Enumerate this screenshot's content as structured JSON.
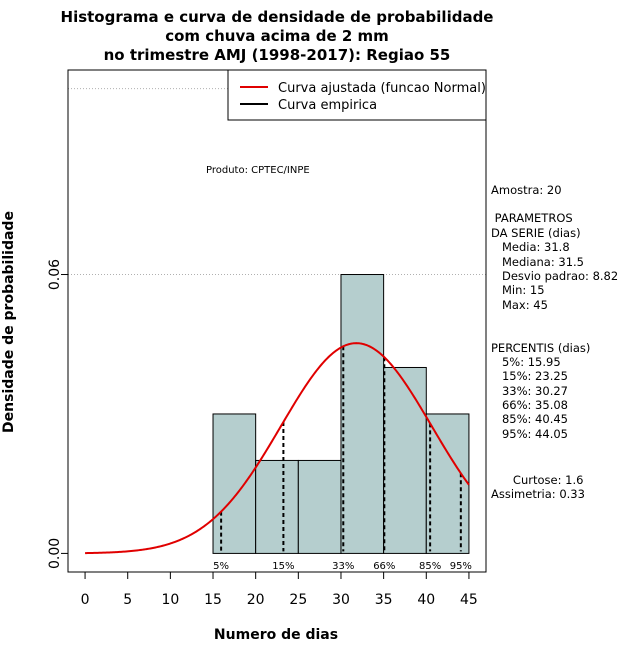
{
  "chart_data": {
    "type": "bar",
    "title_lines": [
      "Histograma e curva de densidade de probabilidade",
      "com chuva acima de 2 mm",
      "no trimestre AMJ (1998-2017): Regiao 55"
    ],
    "xlabel": "Numero de dias",
    "ylabel": "Densidade de probabilidade",
    "xlim": [
      -2,
      47
    ],
    "ylim": [
      -0.004,
      0.104
    ],
    "x_ticks": [
      0,
      5,
      10,
      15,
      20,
      25,
      30,
      35,
      40,
      45
    ],
    "x_tick_labels": [
      "0",
      "5",
      "10",
      "15",
      "20",
      "25",
      "30",
      "35",
      "40",
      "45"
    ],
    "y_ticks": [
      0,
      0.06
    ],
    "y_tick_labels": [
      "0.00",
      "0.06"
    ],
    "gridlines_y": [
      0.06,
      0.1
    ],
    "bins": [
      {
        "from": 15,
        "to": 20,
        "density": 0.03
      },
      {
        "from": 20,
        "to": 25,
        "density": 0.02
      },
      {
        "from": 25,
        "to": 30,
        "density": 0.02
      },
      {
        "from": 30,
        "to": 35,
        "density": 0.06
      },
      {
        "from": 35,
        "to": 40,
        "density": 0.04
      },
      {
        "from": 40,
        "to": 45,
        "density": 0.03
      }
    ],
    "normal_fit": {
      "mean": 31.8,
      "sd": 8.82,
      "x_from": 0,
      "x_to": 45
    },
    "percentile_markers": [
      {
        "label": "5%",
        "x": 15.95
      },
      {
        "label": "15%",
        "x": 23.25
      },
      {
        "label": "33%",
        "x": 30.27
      },
      {
        "label": "66%",
        "x": 35.08
      },
      {
        "label": "85%",
        "x": 40.45
      },
      {
        "label": "95%",
        "x": 44.05
      }
    ],
    "legend": {
      "position": "top-right",
      "entries": [
        {
          "label": "Curva ajustada (funcao Normal)",
          "color": "#e00000"
        },
        {
          "label": "Curva empirica",
          "color": "#000000"
        }
      ]
    },
    "annotation": "Produto: CPTEC/INPE",
    "side_panel": [
      "Amostra: 20",
      " PARAMETROS",
      "DA SERIE (dias)",
      "   Media: 31.8",
      "   Mediana: 31.5",
      "   Desvio padrao: 8.82",
      "   Min: 15",
      "   Max: 45",
      "PERCENTIS (dias)",
      "   5%: 15.95",
      "   15%: 23.25",
      "   33%: 30.27",
      "   66%: 35.08",
      "   85%: 40.45",
      "   95%: 44.05",
      "      Curtose: 1.6",
      "Assimetria: 0.33"
    ]
  },
  "colors": {
    "bar_fill": "#b5cece",
    "bar_stroke": "#000000",
    "curve": "#e00000",
    "grid": "#b0b0b0"
  }
}
